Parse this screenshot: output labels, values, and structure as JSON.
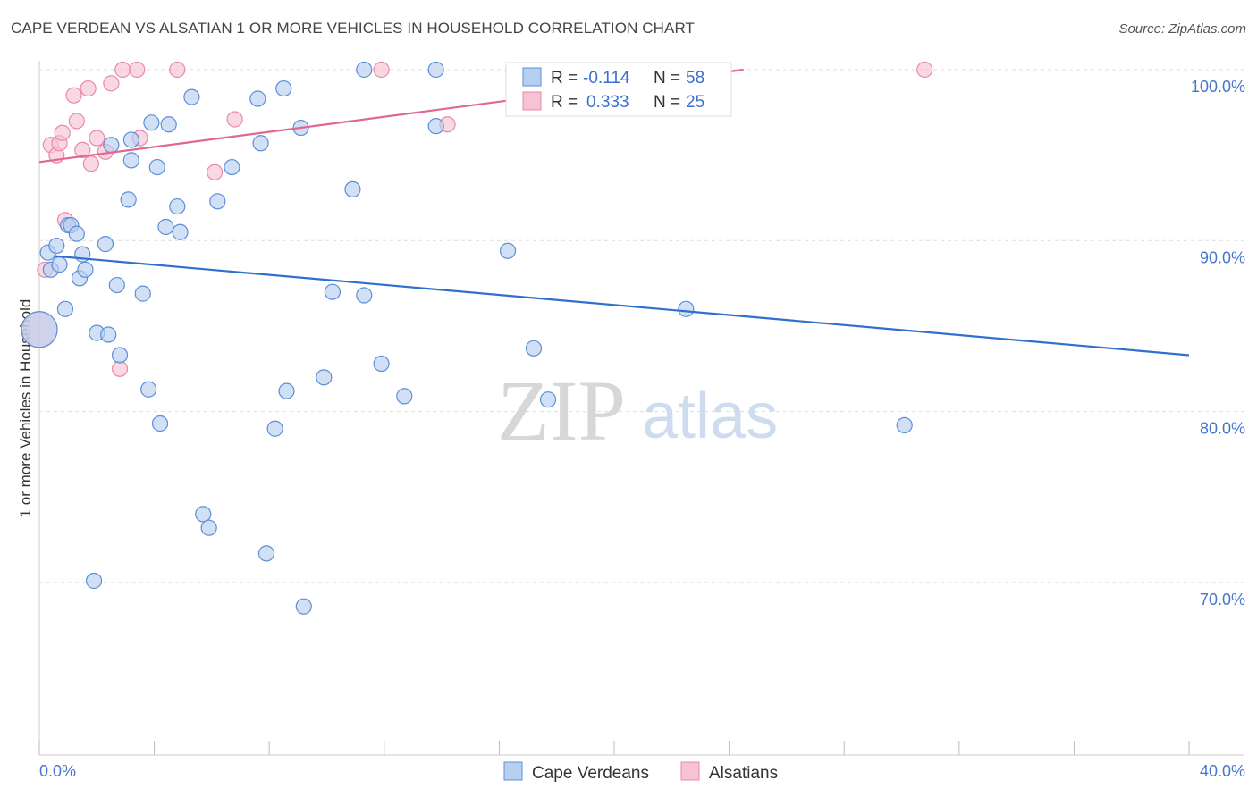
{
  "title": "CAPE VERDEAN VS ALSATIAN 1 OR MORE VEHICLES IN HOUSEHOLD CORRELATION CHART",
  "source": "Source: ZipAtlas.com",
  "watermark": {
    "zip": "ZIP",
    "atlas": "atlas"
  },
  "colors": {
    "blue_fill": "#b8d0f0",
    "blue_stroke": "#5b8fd8",
    "blue_line": "#2f6fcd",
    "pink_fill": "#f7c3d4",
    "pink_stroke": "#e68aa8",
    "pink_line": "#e06890",
    "grid": "#dddddd",
    "axis_text": "#4477cc"
  },
  "legend": {
    "row1": {
      "r_label": "R =",
      "r_value": "-0.114",
      "n_label": "N =",
      "n_value": "58"
    },
    "row2": {
      "r_label": "R =",
      "r_value": "0.333",
      "n_label": "N =",
      "n_value": "25"
    }
  },
  "bottom_legend": {
    "series1": "Cape Verdeans",
    "series2": "Alsatians"
  },
  "chart_data": {
    "type": "scatter",
    "title": "CAPE VERDEAN VS ALSATIAN 1 OR MORE VEHICLES IN HOUSEHOLD CORRELATION CHART",
    "xlabel": "",
    "ylabel": "1 or more Vehicles in Household",
    "xlim": [
      0,
      40
    ],
    "ylim": [
      60,
      100
    ],
    "x_tick_labels": [
      "0.0%",
      "40.0%"
    ],
    "y_ticks": [
      70,
      80,
      90,
      100
    ],
    "y_tick_labels": [
      "70.0%",
      "80.0%",
      "90.0%",
      "100.0%"
    ],
    "grid": true,
    "legend_position": "top-center",
    "series": [
      {
        "name": "Cape Verdeans",
        "r": -0.114,
        "n": 58,
        "trend": {
          "x0": 0.5,
          "y0": 89.1,
          "x1": 40,
          "y1": 83.3
        },
        "points": [
          [
            0.3,
            89.3
          ],
          [
            0.4,
            88.3
          ],
          [
            0.6,
            89.7
          ],
          [
            0.7,
            88.6
          ],
          [
            0.9,
            86.0
          ],
          [
            1.0,
            90.9
          ],
          [
            1.1,
            90.9
          ],
          [
            1.3,
            90.4
          ],
          [
            1.4,
            87.8
          ],
          [
            1.5,
            89.2
          ],
          [
            1.6,
            88.3
          ],
          [
            1.9,
            70.1
          ],
          [
            2.0,
            84.6
          ],
          [
            2.3,
            89.8
          ],
          [
            2.4,
            84.5
          ],
          [
            2.5,
            95.6
          ],
          [
            2.7,
            87.4
          ],
          [
            2.8,
            83.3
          ],
          [
            3.1,
            92.4
          ],
          [
            3.2,
            94.7
          ],
          [
            3.2,
            95.9
          ],
          [
            3.6,
            86.9
          ],
          [
            3.8,
            81.3
          ],
          [
            3.9,
            96.9
          ],
          [
            4.1,
            94.3
          ],
          [
            4.2,
            79.3
          ],
          [
            4.4,
            90.8
          ],
          [
            4.5,
            96.8
          ],
          [
            4.8,
            92.0
          ],
          [
            4.9,
            90.5
          ],
          [
            5.3,
            98.4
          ],
          [
            5.7,
            74.0
          ],
          [
            5.9,
            73.2
          ],
          [
            6.2,
            92.3
          ],
          [
            6.7,
            94.3
          ],
          [
            7.6,
            98.3
          ],
          [
            7.7,
            95.7
          ],
          [
            7.9,
            71.7
          ],
          [
            8.2,
            79.0
          ],
          [
            8.5,
            98.9
          ],
          [
            8.6,
            81.2
          ],
          [
            9.1,
            96.6
          ],
          [
            9.2,
            68.6
          ],
          [
            9.9,
            82.0
          ],
          [
            10.2,
            87.0
          ],
          [
            10.9,
            93.0
          ],
          [
            11.3,
            86.8
          ],
          [
            11.3,
            100.0
          ],
          [
            11.9,
            82.8
          ],
          [
            12.7,
            80.9
          ],
          [
            13.8,
            96.7
          ],
          [
            13.8,
            100.0
          ],
          [
            16.3,
            89.4
          ],
          [
            17.2,
            83.7
          ],
          [
            17.7,
            80.7
          ],
          [
            22.5,
            86.0
          ],
          [
            30.1,
            79.2
          ],
          [
            0.0,
            84.8
          ]
        ]
      },
      {
        "name": "Alsatians",
        "r": 0.333,
        "n": 25,
        "trend": {
          "x0": 0,
          "y0": 94.6,
          "x1": 24.5,
          "y1": 100.0
        },
        "points": [
          [
            0.4,
            95.6
          ],
          [
            0.6,
            95.0
          ],
          [
            0.7,
            95.7
          ],
          [
            0.8,
            96.3
          ],
          [
            0.9,
            91.2
          ],
          [
            1.2,
            98.5
          ],
          [
            1.3,
            97.0
          ],
          [
            1.5,
            95.3
          ],
          [
            1.7,
            98.9
          ],
          [
            1.8,
            94.5
          ],
          [
            2.0,
            96.0
          ],
          [
            2.3,
            95.2
          ],
          [
            2.5,
            99.2
          ],
          [
            2.8,
            82.5
          ],
          [
            2.9,
            100.0
          ],
          [
            3.4,
            100.0
          ],
          [
            3.5,
            96.0
          ],
          [
            4.8,
            100.0
          ],
          [
            6.1,
            94.0
          ],
          [
            6.8,
            97.1
          ],
          [
            11.9,
            100.0
          ],
          [
            14.2,
            96.8
          ],
          [
            30.8,
            100.0
          ],
          [
            0.2,
            88.3
          ],
          [
            0.0,
            84.8
          ]
        ]
      }
    ]
  }
}
